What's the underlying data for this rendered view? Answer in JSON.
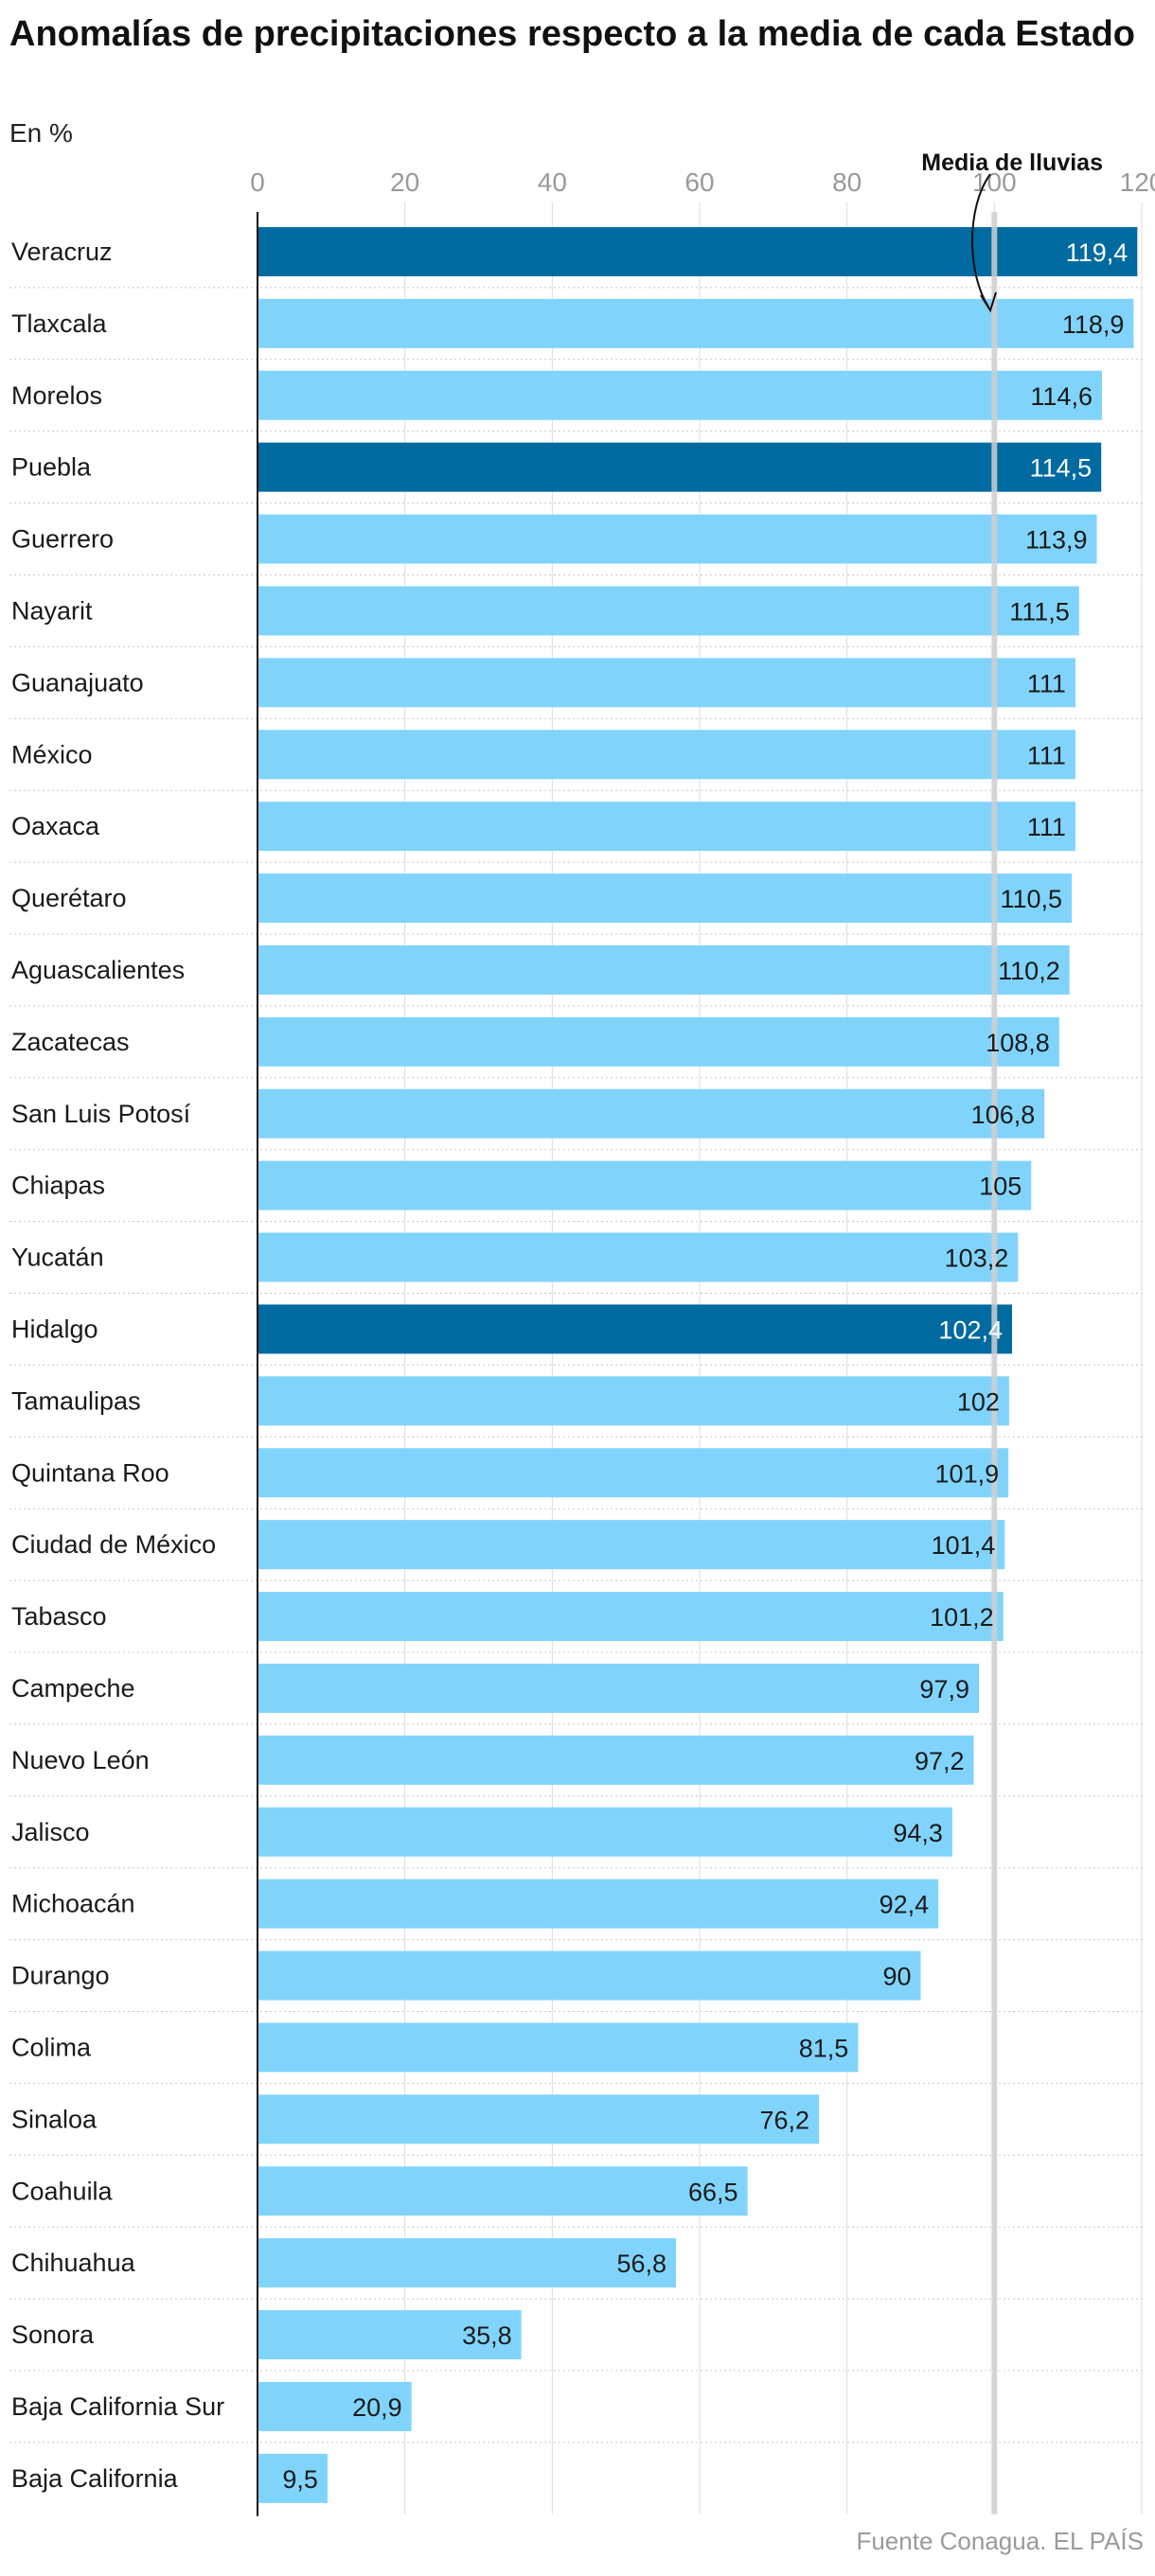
{
  "chart_data": {
    "type": "bar",
    "orientation": "horizontal",
    "title": "Anomalías de precipitaciones respecto a la media de cada Estado",
    "subtitle": "En %",
    "source": "Fuente Conagua. EL PAÍS",
    "xlim": [
      0,
      120
    ],
    "xticks": [
      "0",
      "20",
      "40",
      "60",
      "80",
      "100",
      "120"
    ],
    "xtick_values": [
      0,
      20,
      40,
      60,
      80,
      100,
      120
    ],
    "reference": {
      "value": 100,
      "label": "Media de lluvias"
    },
    "colors": {
      "default": "#80d4fb",
      "highlight": "#006aa1",
      "reference": "#cfcfcf",
      "grid": "#dddddd"
    },
    "categories": [
      "Veracruz",
      "Tlaxcala",
      "Morelos",
      "Puebla",
      "Guerrero",
      "Nayarit",
      "Guanajuato",
      "México",
      "Oaxaca",
      "Querétaro",
      "Aguascalientes",
      "Zacatecas",
      "San Luis Potosí",
      "Chiapas",
      "Yucatán",
      "Hidalgo",
      "Tamaulipas",
      "Quintana Roo",
      "Ciudad de México",
      "Tabasco",
      "Campeche",
      "Nuevo León",
      "Jalisco",
      "Michoacán",
      "Durango",
      "Colima",
      "Sinaloa",
      "Coahuila",
      "Chihuahua",
      "Sonora",
      "Baja California Sur",
      "Baja California"
    ],
    "values": [
      119.4,
      118.9,
      114.6,
      114.5,
      113.9,
      111.5,
      111,
      111,
      111,
      110.5,
      110.2,
      108.8,
      106.8,
      105,
      103.2,
      102.4,
      102,
      101.9,
      101.4,
      101.2,
      97.9,
      97.2,
      94.3,
      92.4,
      90,
      81.5,
      76.2,
      66.5,
      56.8,
      35.8,
      20.9,
      9.5
    ],
    "value_labels": [
      "119,4",
      "118,9",
      "114,6",
      "114,5",
      "113,9",
      "111,5",
      "111",
      "111",
      "111",
      "110,5",
      "110,2",
      "108,8",
      "106,8",
      "105",
      "103,2",
      "102,4",
      "102",
      "101,9",
      "101,4",
      "101,2",
      "97,9",
      "97,2",
      "94,3",
      "92,4",
      "90",
      "81,5",
      "76,2",
      "66,5",
      "56,8",
      "35,8",
      "20,9",
      "9,5"
    ],
    "highlighted": [
      "Veracruz",
      "Puebla",
      "Hidalgo"
    ]
  }
}
